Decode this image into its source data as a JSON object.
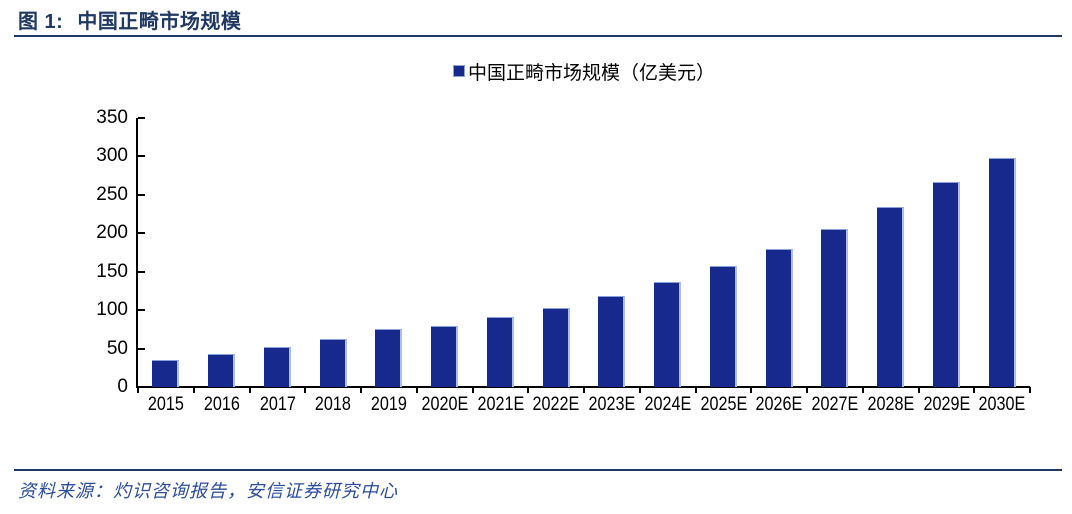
{
  "figure": {
    "label": "图 1:",
    "title": "中国正畸市场规模"
  },
  "footer": {
    "source": "资料来源：灼识咨询报告，安信证券研究中心"
  },
  "chart_data": {
    "type": "bar",
    "title": "中国正畸市场规模",
    "series_name": "中国正畸市场规模（亿美元）",
    "categories": [
      "2015",
      "2016",
      "2017",
      "2018",
      "2019",
      "2020E",
      "2021E",
      "2022E",
      "2023E",
      "2024E",
      "2025E",
      "2026E",
      "2027E",
      "2028E",
      "2029E",
      "2030E"
    ],
    "values": [
      35,
      43,
      52,
      62,
      75,
      80,
      91,
      103,
      118,
      136,
      157,
      179,
      206,
      234,
      267,
      298
    ],
    "ylabel": "",
    "xlabel": "",
    "ylim": [
      0,
      350
    ],
    "yticks": [
      0,
      50,
      100,
      150,
      200,
      250,
      300,
      350
    ],
    "grid": false,
    "legend_position": "top-center",
    "bar_color": "#17298C"
  },
  "colors": {
    "accent_navy": "#1F3864",
    "bar_blue": "#17298C",
    "bar_edge_light": "#AEBEEA",
    "source_blue": "#2B4C9E",
    "axis_black": "#000000"
  }
}
